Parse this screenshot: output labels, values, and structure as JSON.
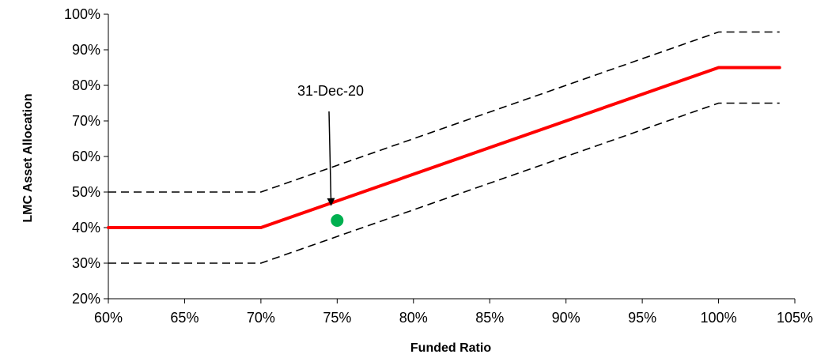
{
  "chart_data": {
    "type": "line",
    "title": "",
    "xlabel": "Funded Ratio",
    "ylabel": "LMC Asset Allocation",
    "xlim": [
      60,
      105
    ],
    "ylim": [
      20,
      100
    ],
    "x_ticks": [
      60,
      65,
      70,
      75,
      80,
      85,
      90,
      95,
      100,
      105
    ],
    "y_ticks": [
      20,
      30,
      40,
      50,
      60,
      70,
      80,
      90,
      100
    ],
    "tick_format": "percent",
    "grid": false,
    "legend": "none",
    "series": [
      {
        "style": "solid",
        "color": "#ff0000",
        "points": [
          [
            60,
            40
          ],
          [
            70,
            40
          ],
          [
            100,
            85
          ],
          [
            104,
            85
          ]
        ]
      },
      {
        "style": "dashed",
        "color": "#000000",
        "points": [
          [
            60,
            50
          ],
          [
            70,
            50
          ],
          [
            100,
            95
          ],
          [
            104,
            95
          ]
        ]
      },
      {
        "style": "dashed",
        "color": "#000000",
        "points": [
          [
            60,
            30
          ],
          [
            70,
            30
          ],
          [
            100,
            75
          ],
          [
            104,
            75
          ]
        ]
      }
    ],
    "markers": [
      {
        "x": 75,
        "y": 42,
        "color": "#00b050"
      }
    ],
    "annotations": [
      {
        "text": "31-Dec-20",
        "arrow_to": [
          74.6,
          46.5
        ]
      }
    ]
  }
}
